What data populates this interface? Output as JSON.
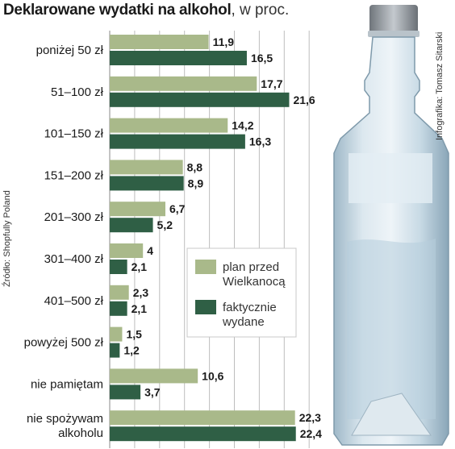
{
  "title": "Deklarowane wydatki na alkohol",
  "subtitle": ", w proc.",
  "source": "Źródło: Shopfully Poland",
  "credit": "Infografika: Tomasz Sitarski",
  "colors": {
    "plan": "#a9b98a",
    "actual": "#2f5f45",
    "grid": "#bdbdbd",
    "bottle_glass": "#c9dbe6",
    "bottle_cap": "#9aa0a6"
  },
  "chart_data": {
    "type": "bar",
    "orientation": "horizontal",
    "title": "Deklarowane wydatki na alkohol, w proc.",
    "categories": [
      [
        "poniżej 50 zł"
      ],
      [
        "51–100 zł"
      ],
      [
        "101–150 zł"
      ],
      [
        "151–200 zł"
      ],
      [
        "201–300 zł"
      ],
      [
        "301–400 zł"
      ],
      [
        "401–500 zł"
      ],
      [
        "powyżej 500 zł"
      ],
      [
        "nie pamiętam"
      ],
      [
        "nie spożywam",
        "alkoholu"
      ]
    ],
    "series": [
      {
        "name": "plan przed Wielkanocą",
        "legend_lines": [
          "plan przed",
          "Wielkanocą"
        ],
        "values": [
          11.9,
          17.7,
          14.2,
          8.8,
          6.7,
          4,
          2.3,
          1.5,
          10.6,
          22.3
        ],
        "labels": [
          "11,9",
          "17,7",
          "14,2",
          "8,8",
          "6,7",
          "4",
          "2,3",
          "1,5",
          "10,6",
          "22,3"
        ]
      },
      {
        "name": "faktycznie wydane",
        "legend_lines": [
          "faktycznie",
          "wydane"
        ],
        "values": [
          16.5,
          21.6,
          16.3,
          8.9,
          5.2,
          2.1,
          2.1,
          1.2,
          3.7,
          22.4
        ],
        "labels": [
          "16,5",
          "21,6",
          "16,3",
          "8,9",
          "5,2",
          "2,1",
          "2,1",
          "1,2",
          "3,7",
          "22,4"
        ]
      }
    ],
    "xlim": [
      0,
      24
    ],
    "grid": true,
    "legend_position": "center"
  }
}
